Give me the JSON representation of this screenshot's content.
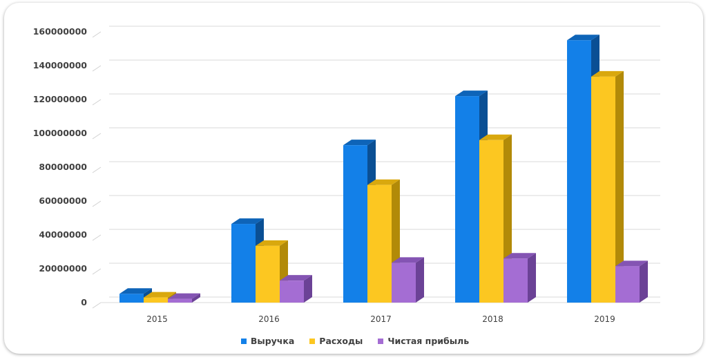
{
  "chart_data": {
    "type": "bar",
    "categories": [
      "2015",
      "2016",
      "2017",
      "2018",
      "2019"
    ],
    "series": [
      {
        "name": "Выручка",
        "values": [
          5200000,
          46500000,
          93000000,
          122000000,
          155000000
        ],
        "color": "#1380e8",
        "top": "#0e64b8",
        "side": "#0a4f94"
      },
      {
        "name": "Расходы",
        "values": [
          3000000,
          33500000,
          69500000,
          96000000,
          133500000
        ],
        "color": "#fcc721",
        "top": "#d9a80e",
        "side": "#b28a08"
      },
      {
        "name": "Чистая прибыль",
        "values": [
          2200000,
          13000000,
          23500000,
          26000000,
          21500000
        ],
        "color": "#a46dd3",
        "top": "#8454b3",
        "side": "#6b4296"
      }
    ],
    "yticks": [
      "0",
      "20000000",
      "40000000",
      "60000000",
      "80000000",
      "100000000",
      "120000000",
      "140000000",
      "160000000"
    ],
    "ylim": [
      0,
      160000000
    ],
    "grid": true,
    "legend_position": "bottom",
    "title": "",
    "xlabel": "",
    "ylabel": ""
  }
}
